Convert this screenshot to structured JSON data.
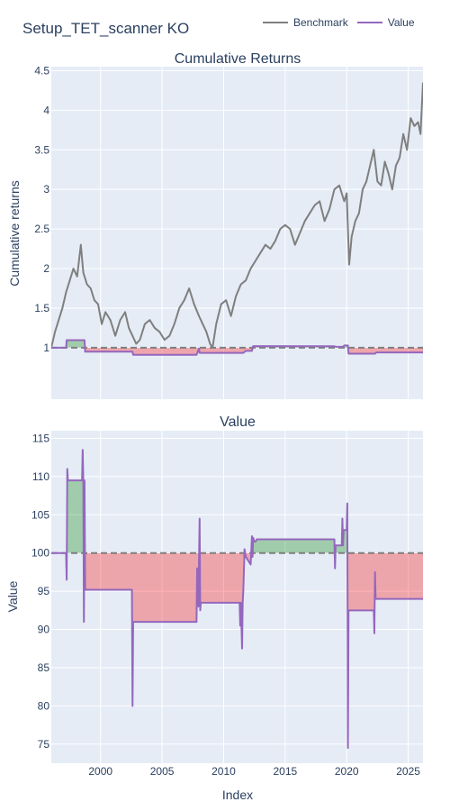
{
  "title": "Setup_TET_scanner KO",
  "legend": [
    {
      "name": "Benchmark",
      "color": "#7f7f7f"
    },
    {
      "name": "Value",
      "color": "#9467bd"
    }
  ],
  "chart_data": [
    {
      "type": "line",
      "title": "Cumulative Returns",
      "xlabel": "",
      "ylabel": "Cumulative returns",
      "xlim": [
        1996.0,
        2026.2
      ],
      "ylim": [
        0.35,
        4.55
      ],
      "yticks": [
        1,
        1.5,
        2,
        2.5,
        3,
        3.5,
        4,
        4.5
      ],
      "yticklabels": [
        "1",
        "1.5",
        "2",
        "2.5",
        "3",
        "3.5",
        "4",
        "4.5"
      ],
      "baseline": 1,
      "gridlines": true,
      "series": [
        {
          "name": "Benchmark",
          "color": "#7f7f7f",
          "x": [
            1996.0,
            1996.3,
            1996.6,
            1996.9,
            1997.2,
            1997.5,
            1997.8,
            1998.1,
            1998.4,
            1998.6,
            1998.9,
            1999.2,
            1999.5,
            1999.8,
            2000.1,
            2000.4,
            2000.8,
            2001.2,
            2001.6,
            2002.0,
            2002.3,
            2002.6,
            2002.9,
            2003.2,
            2003.6,
            2004.0,
            2004.4,
            2004.8,
            2005.2,
            2005.6,
            2006.0,
            2006.4,
            2006.8,
            2007.2,
            2007.6,
            2008.0,
            2008.3,
            2008.6,
            2008.9,
            2009.1,
            2009.4,
            2009.8,
            2010.2,
            2010.6,
            2011.0,
            2011.4,
            2011.8,
            2012.2,
            2012.6,
            2013.0,
            2013.4,
            2013.8,
            2014.2,
            2014.6,
            2015.0,
            2015.4,
            2015.8,
            2016.2,
            2016.6,
            2017.0,
            2017.4,
            2017.8,
            2018.2,
            2018.6,
            2019.0,
            2019.4,
            2019.8,
            2020.0,
            2020.2,
            2020.4,
            2020.7,
            2021.0,
            2021.3,
            2021.6,
            2021.9,
            2022.2,
            2022.5,
            2022.8,
            2023.1,
            2023.4,
            2023.7,
            2024.0,
            2024.3,
            2024.6,
            2024.9,
            2025.2,
            2025.5,
            2025.8,
            2026.0,
            2026.2
          ],
          "values": [
            1.0,
            1.2,
            1.35,
            1.5,
            1.7,
            1.85,
            2.0,
            1.9,
            2.3,
            1.95,
            1.8,
            1.75,
            1.6,
            1.55,
            1.3,
            1.45,
            1.35,
            1.15,
            1.35,
            1.45,
            1.25,
            1.15,
            1.05,
            1.1,
            1.3,
            1.35,
            1.25,
            1.2,
            1.1,
            1.15,
            1.3,
            1.5,
            1.6,
            1.75,
            1.55,
            1.4,
            1.3,
            1.2,
            1.05,
            1.0,
            1.3,
            1.55,
            1.6,
            1.4,
            1.65,
            1.8,
            1.85,
            2.0,
            2.1,
            2.2,
            2.3,
            2.25,
            2.35,
            2.5,
            2.55,
            2.5,
            2.3,
            2.45,
            2.6,
            2.7,
            2.8,
            2.85,
            2.6,
            2.75,
            3.0,
            3.05,
            2.85,
            2.95,
            2.05,
            2.4,
            2.6,
            2.7,
            3.0,
            3.1,
            3.3,
            3.5,
            3.1,
            3.05,
            3.35,
            3.2,
            3.0,
            3.3,
            3.4,
            3.7,
            3.5,
            3.9,
            3.8,
            3.85,
            3.7,
            4.35
          ]
        },
        {
          "name": "Value",
          "color": "#9467bd",
          "x": [
            1996.0,
            1997.2,
            1997.25,
            1998.7,
            1998.75,
            2002.6,
            2002.65,
            2007.8,
            2008.0,
            2008.05,
            2011.6,
            2011.8,
            2012.3,
            2012.4,
            2019.0,
            2019.1,
            2019.7,
            2019.8,
            2020.1,
            2020.15,
            2022.3,
            2022.4,
            2026.2
          ],
          "values": [
            1.0,
            1.0,
            1.095,
            1.095,
            0.95,
            0.95,
            0.91,
            0.91,
            0.99,
            0.935,
            0.935,
            0.96,
            0.96,
            1.02,
            1.018,
            1.013,
            1.012,
            1.028,
            1.028,
            0.925,
            0.925,
            0.94,
            0.94
          ]
        }
      ]
    },
    {
      "type": "line",
      "title": "Value",
      "xlabel": "Index",
      "ylabel": "Value",
      "xlim": [
        1996.0,
        2026.2
      ],
      "ylim": [
        72.5,
        116
      ],
      "xticks": [
        2000,
        2005,
        2010,
        2015,
        2020,
        2025
      ],
      "xticklabels": [
        "2000",
        "2005",
        "2010",
        "2015",
        "2020",
        "2025"
      ],
      "yticks": [
        75,
        80,
        85,
        90,
        95,
        100,
        105,
        110,
        115
      ],
      "yticklabels": [
        "75",
        "80",
        "85",
        "90",
        "95",
        "100",
        "105",
        "110",
        "115"
      ],
      "baseline": 100,
      "gridlines": true,
      "series": [
        {
          "name": "Value",
          "color": "#9467bd",
          "x": [
            1996.0,
            1997.2,
            1997.25,
            1997.3,
            1997.35,
            1998.5,
            1998.55,
            1998.6,
            1998.65,
            1998.7,
            1998.75,
            2002.55,
            2002.6,
            2002.65,
            2002.7,
            2007.8,
            2007.85,
            2007.9,
            2007.95,
            2008.05,
            2008.1,
            2008.15,
            2008.2,
            2011.3,
            2011.35,
            2011.4,
            2011.5,
            2011.55,
            2011.6,
            2011.7,
            2011.8,
            2012.2,
            2012.3,
            2012.35,
            2012.4,
            2012.5,
            2012.6,
            2012.7,
            2019.0,
            2019.05,
            2019.1,
            2019.15,
            2019.6,
            2019.65,
            2019.7,
            2019.75,
            2019.8,
            2020.0,
            2020.05,
            2020.1,
            2020.15,
            2020.2,
            2022.2,
            2022.25,
            2022.3,
            2022.35,
            2022.4,
            2022.45,
            2026.2
          ],
          "values": [
            100.0,
            100.0,
            96.5,
            111.0,
            109.5,
            109.5,
            113.5,
            109.5,
            91.0,
            109.5,
            95.2,
            95.2,
            80.0,
            91.0,
            91.0,
            91.0,
            98.0,
            98.0,
            93.0,
            104.5,
            92.5,
            93.5,
            93.5,
            93.5,
            90.5,
            93.5,
            87.5,
            93.5,
            95.0,
            100.5,
            99.5,
            98.5,
            102.2,
            99.5,
            102.0,
            101.5,
            101.5,
            101.8,
            101.8,
            98.0,
            101.0,
            101.0,
            101.0,
            104.5,
            101.0,
            103.0,
            103.0,
            103.0,
            106.5,
            74.5,
            92.5,
            92.5,
            92.5,
            89.5,
            97.5,
            94.0,
            94.0,
            94.0,
            94.0
          ]
        }
      ]
    }
  ]
}
